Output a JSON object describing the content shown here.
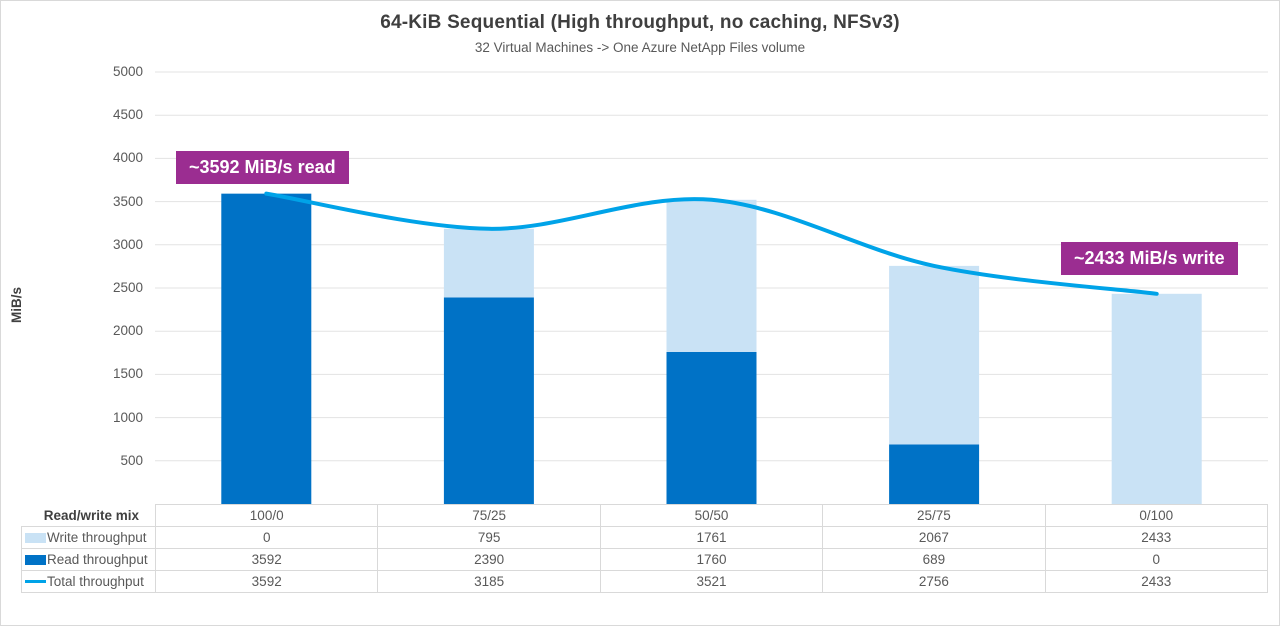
{
  "title": "64-KiB Sequential (High throughput, no caching, NFSv3)",
  "subtitle": "32 Virtual Machines -> One Azure NetApp Files volume",
  "chart_data": {
    "type": "bar",
    "subtype": "stacked-bars-with-line-overlay",
    "categories": [
      "100/0",
      "75/25",
      "50/50",
      "25/75",
      "0/100"
    ],
    "category_axis_title": "Read/write mix",
    "series": [
      {
        "name": "Write throughput",
        "type": "bar",
        "color": "#c9e2f5",
        "values": [
          0,
          795,
          1761,
          2067,
          2433
        ]
      },
      {
        "name": "Read throughput",
        "type": "bar",
        "color": "#0072c6",
        "values": [
          3592,
          2390,
          1760,
          689,
          0
        ]
      },
      {
        "name": "Total throughput",
        "type": "line",
        "color": "#00a3e8",
        "values": [
          3592,
          3185,
          3521,
          2756,
          2433
        ]
      }
    ],
    "stack_order_bottom_to_top": [
      "Read throughput",
      "Write throughput"
    ],
    "ylabel": "MiB/s",
    "ylim": [
      0,
      5000
    ],
    "ytick_interval": 500,
    "grid": "horizontal",
    "legend_position": "table-left",
    "annotations": [
      {
        "text": "~3592 MiB/s read",
        "color": "#9b2d91"
      },
      {
        "text": "~2433 MiB/s write",
        "color": "#9b2d91"
      }
    ]
  }
}
